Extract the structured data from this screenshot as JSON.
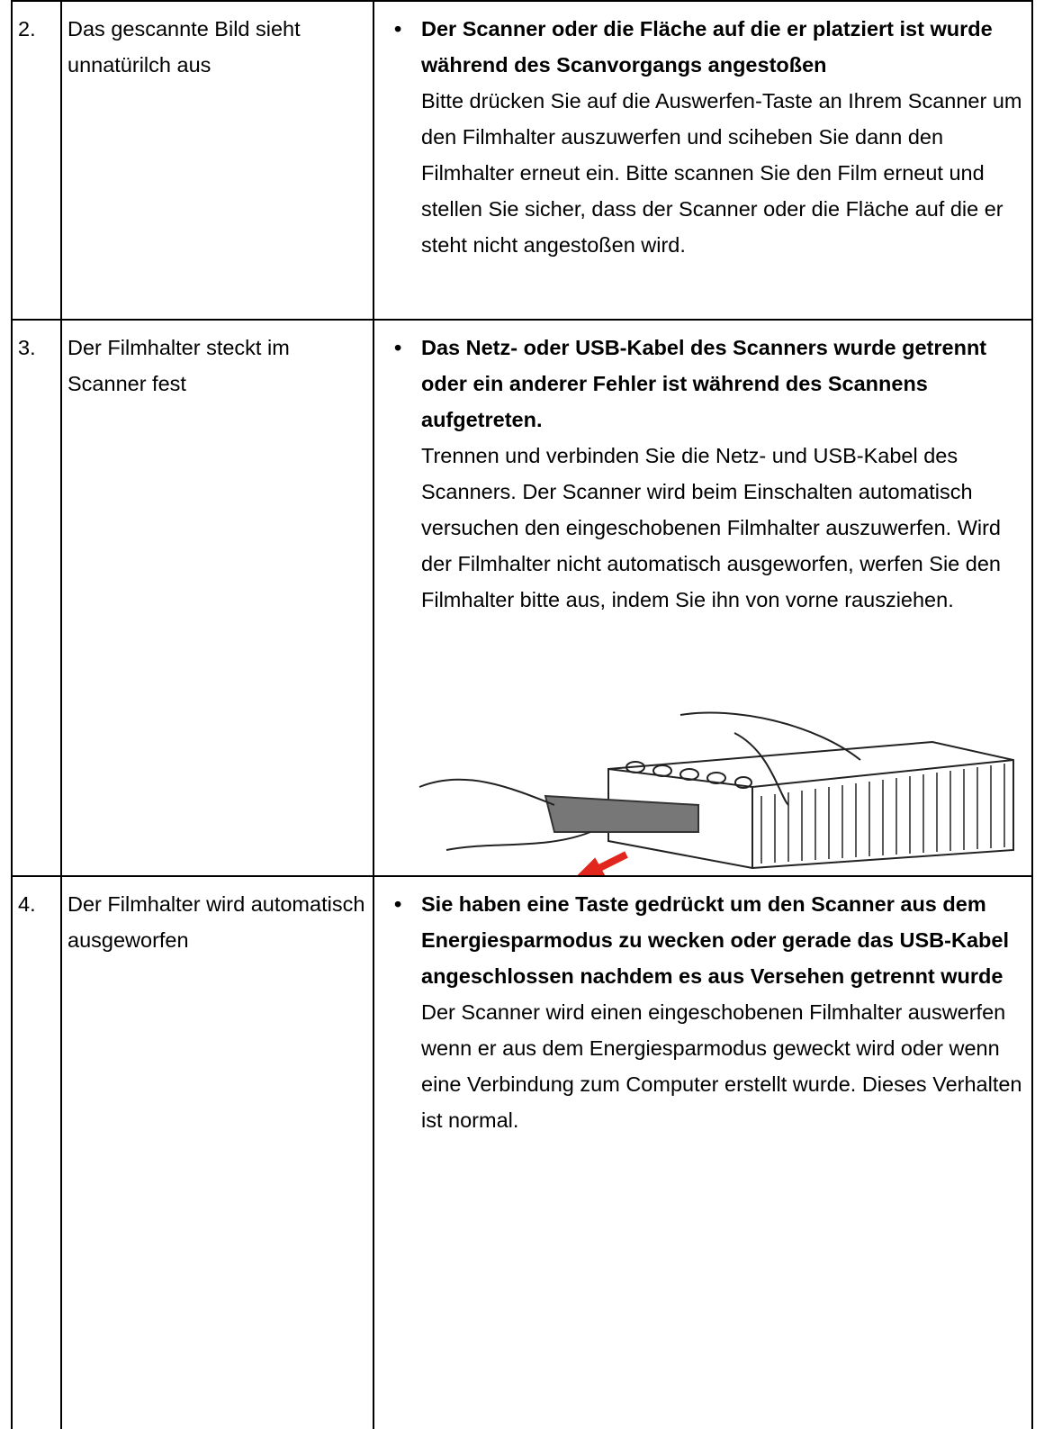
{
  "table": {
    "rows": [
      {
        "number": "2.",
        "problem": "Das gescannte Bild sieht unnatürilch aus",
        "cause": "Der Scanner oder die Fläche auf die er platziert ist wurde während des Scanvorgangs angestoßen",
        "solution": "Bitte drücken Sie auf die Auswerfen-Taste an Ihrem Scanner um den Filmhalter auszuwerfen und sciheben Sie dann den Filmhalter erneut ein. Bitte scannen Sie den Film erneut und stellen Sie sicher, dass der Scanner oder die Fläche auf die er steht nicht angestoßen wird."
      },
      {
        "number": "3.",
        "problem": "Der Filmhalter steckt im Scanner fest",
        "cause": "Das Netz- oder USB-Kabel des Scanners wurde getrennt oder ein anderer Fehler ist während des Scannens aufgetreten.",
        "solution": "Trennen und verbinden Sie die Netz- und USB-Kabel des Scanners. Der Scanner wird beim Einschalten automatisch versuchen den eingeschobenen Filmhalter auszuwerfen. Wird der Filmhalter nicht automatisch ausgeworfen, werfen Sie den Filmhalter bitte aus, indem Sie ihn von vorne rausziehen."
      },
      {
        "number": "4.",
        "problem": "Der Filmhalter wird automatisch ausgeworfen",
        "cause": "Sie haben eine Taste gedrückt um den Scanner aus dem Energiesparmodus zu wecken oder gerade das USB-Kabel angeschlossen nachdem es aus Versehen getrennt wurde",
        "solution": "Der Scanner wird einen eingeschobenen Filmhalter auswerfen wenn er aus dem Energiesparmodus geweckt wird oder wenn eine Verbindung zum Computer erstellt wurde. Dieses Verhalten ist normal."
      }
    ]
  }
}
